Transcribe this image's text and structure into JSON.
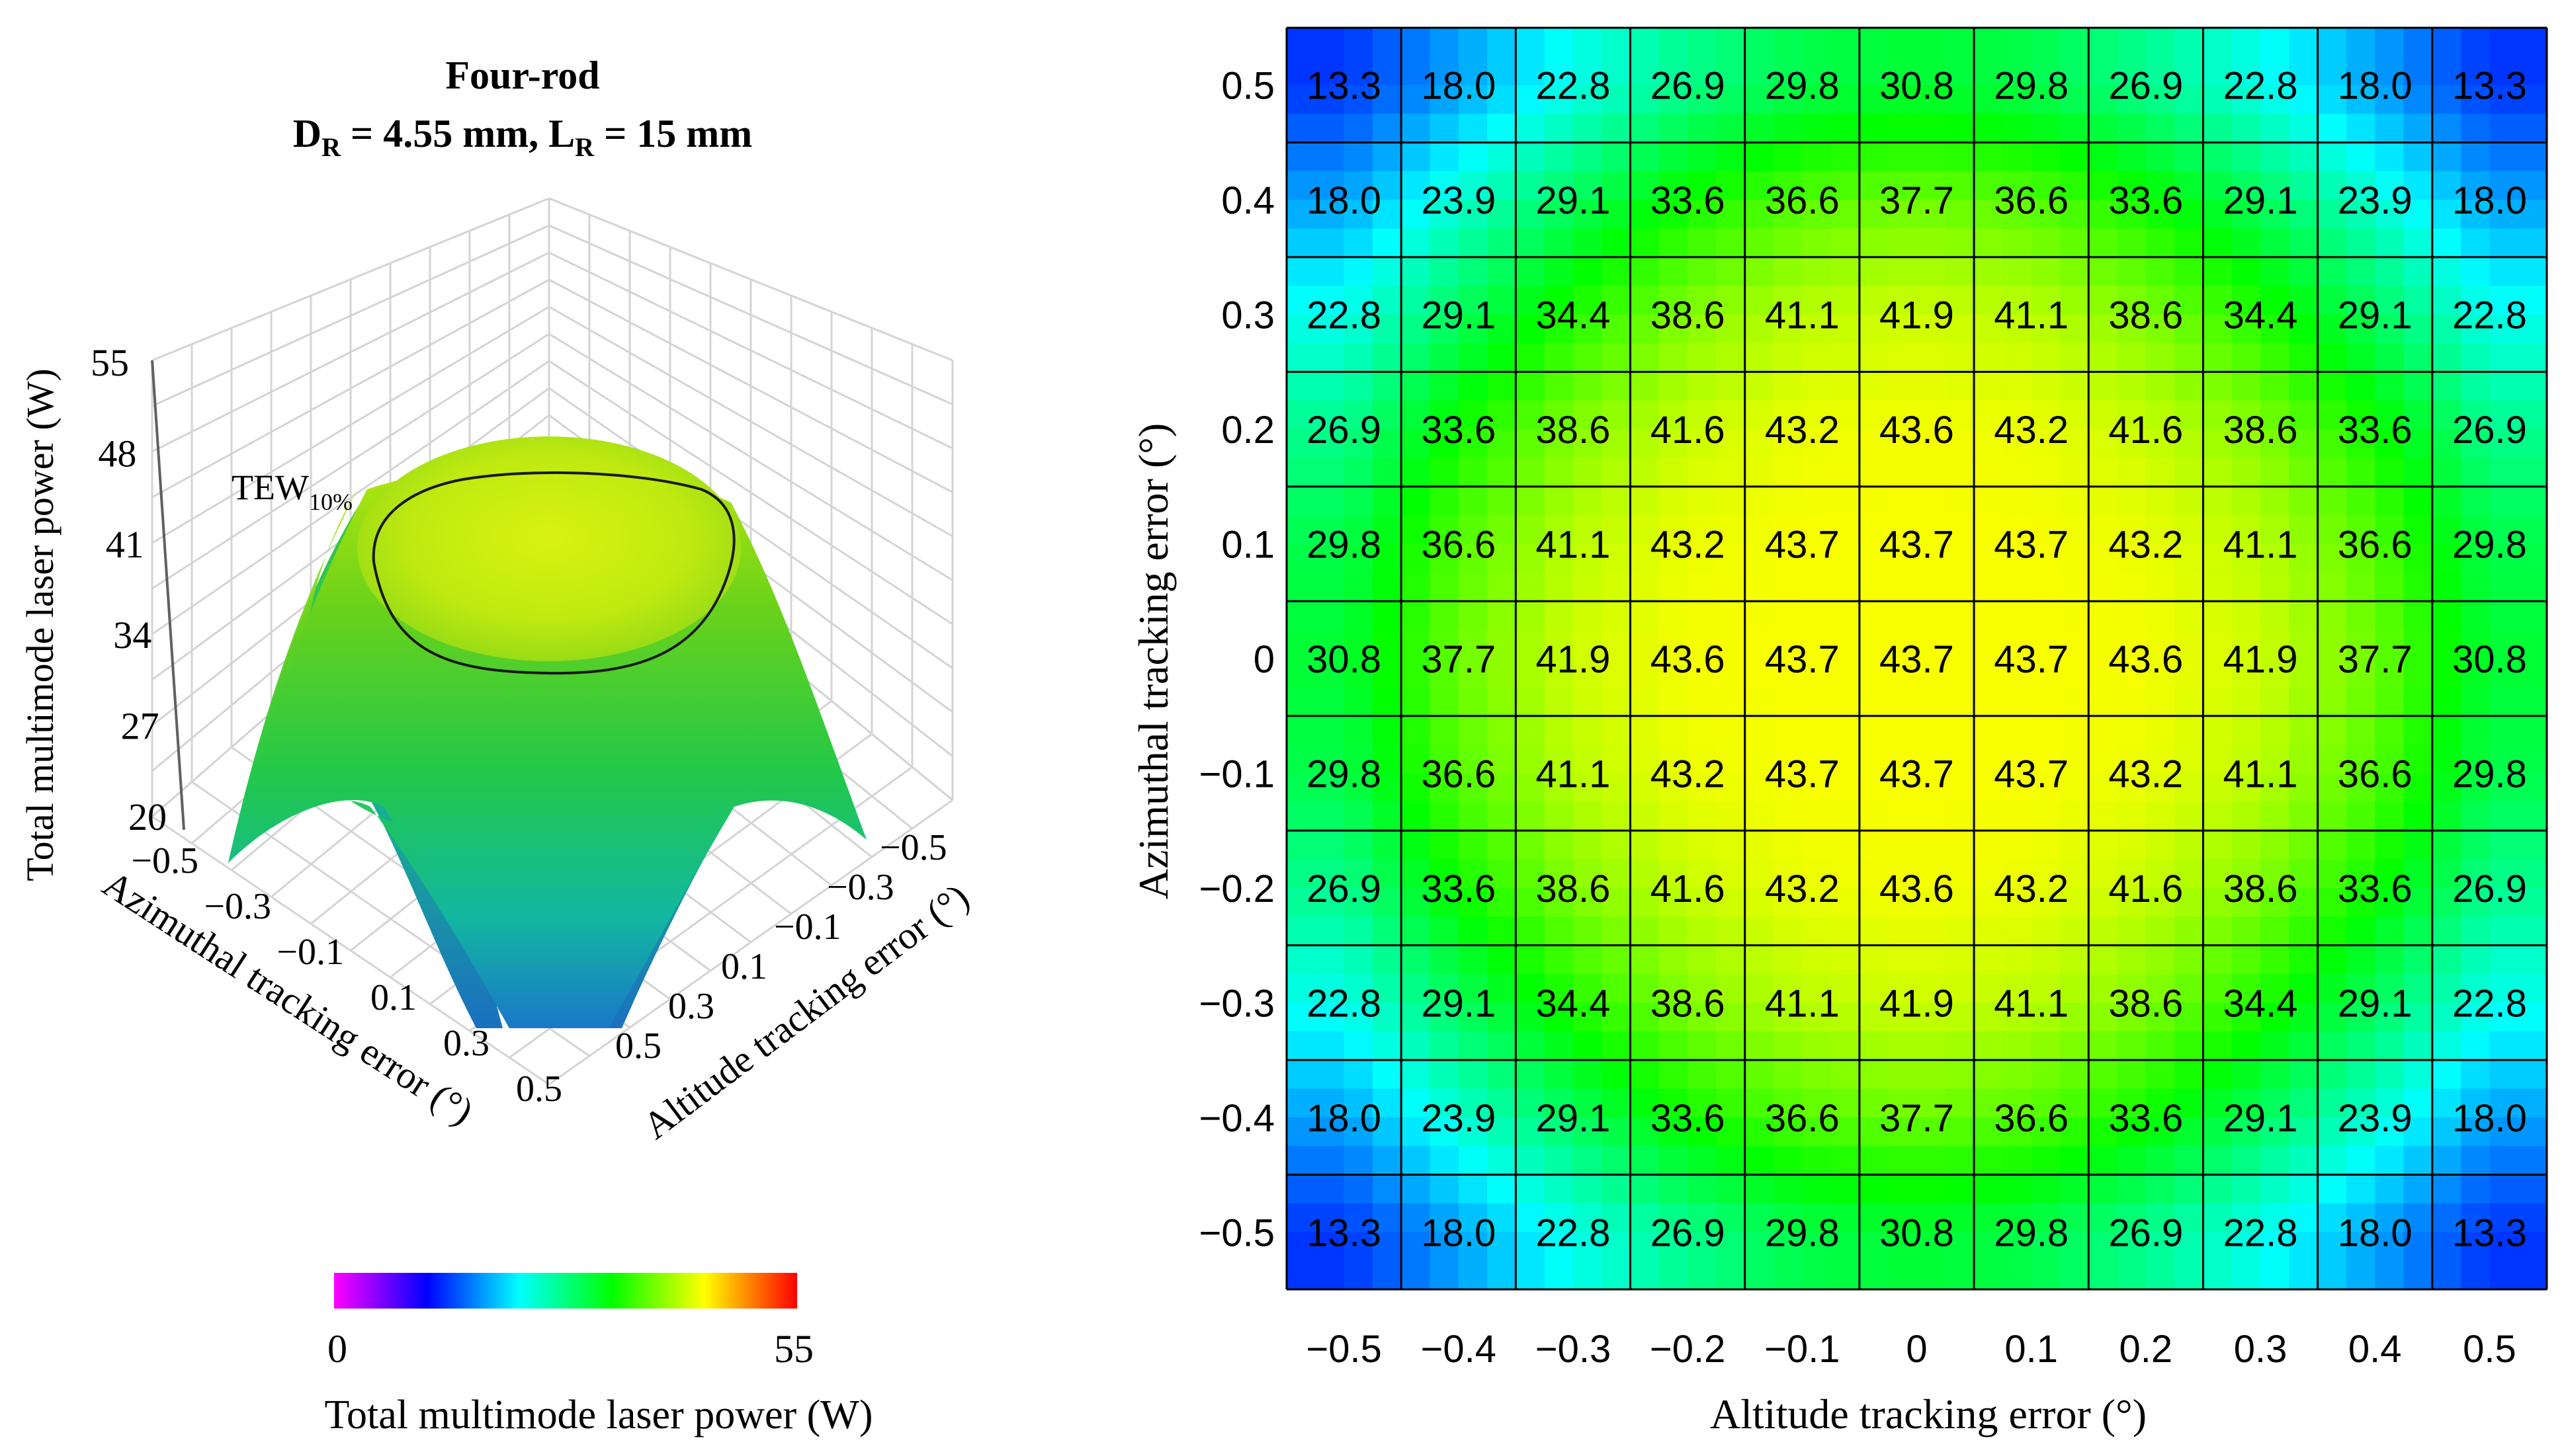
{
  "chart_data": [
    {
      "type": "surface",
      "title": "Four-rod",
      "subtitle_parts": [
        "D",
        "R",
        " = 4.55 mm,  L",
        "R",
        " = 15 mm"
      ],
      "zlabel": "Total multimode laser power (W)",
      "xlabel": "Altitude tracking error (°)",
      "ylabel": "Azimuthal tracking error (°)",
      "z_ticks": [
        "55",
        "48",
        "41",
        "34",
        "27",
        "20"
      ],
      "z_range": [
        20,
        55
      ],
      "x_ticks": [
        "−0.5",
        "−0.3",
        "−0.1",
        "0.1",
        "0.3",
        "0.5"
      ],
      "y_ticks": [
        "−0.5",
        "−0.3",
        "−0.1",
        "0.1",
        "0.3",
        "0.5"
      ],
      "annotation": {
        "main": "TEW",
        "sub": "10%"
      },
      "colorbar": {
        "min_label": "0",
        "max_label": "55",
        "range": [
          0,
          55
        ],
        "label": "Total multimode laser power (W)",
        "colors": [
          "#ff00ff",
          "#0000ff",
          "#00ffff",
          "#00ff00",
          "#ffff00",
          "#ff0000"
        ]
      }
    },
    {
      "type": "heatmap",
      "xlabel": "Altitude tracking error (°)",
      "ylabel": "Azimuthal tracking error (°)",
      "x_ticks": [
        "−0.5",
        "−0.4",
        "−0.3",
        "−0.2",
        "−0.1",
        "0",
        "0.1",
        "0.2",
        "0.3",
        "0.4",
        "0.5"
      ],
      "y_ticks": [
        "0.5",
        "0.4",
        "0.3",
        "0.2",
        "0.1",
        "0",
        "−0.1",
        "−0.2",
        "−0.3",
        "−0.4",
        "−0.5"
      ],
      "values": [
        [
          "13.3",
          "18.0",
          "22.8",
          "26.9",
          "29.8",
          "30.8",
          "29.8",
          "26.9",
          "22.8",
          "18.0",
          "13.3"
        ],
        [
          "18.0",
          "23.9",
          "29.1",
          "33.6",
          "36.6",
          "37.7",
          "36.6",
          "33.6",
          "29.1",
          "23.9",
          "18.0"
        ],
        [
          "22.8",
          "29.1",
          "34.4",
          "38.6",
          "41.1",
          "41.9",
          "41.1",
          "38.6",
          "34.4",
          "29.1",
          "22.8"
        ],
        [
          "26.9",
          "33.6",
          "38.6",
          "41.6",
          "43.2",
          "43.6",
          "43.2",
          "41.6",
          "38.6",
          "33.6",
          "26.9"
        ],
        [
          "29.8",
          "36.6",
          "41.1",
          "43.2",
          "43.7",
          "43.7",
          "43.7",
          "43.2",
          "41.1",
          "36.6",
          "29.8"
        ],
        [
          "30.8",
          "37.7",
          "41.9",
          "43.6",
          "43.7",
          "43.7",
          "43.7",
          "43.6",
          "41.9",
          "37.7",
          "30.8"
        ],
        [
          "29.8",
          "36.6",
          "41.1",
          "43.2",
          "43.7",
          "43.7",
          "43.7",
          "43.2",
          "41.1",
          "36.6",
          "29.8"
        ],
        [
          "26.9",
          "33.6",
          "38.6",
          "41.6",
          "43.2",
          "43.6",
          "43.2",
          "41.6",
          "38.6",
          "33.6",
          "26.9"
        ],
        [
          "22.8",
          "29.1",
          "34.4",
          "38.6",
          "41.1",
          "41.9",
          "41.1",
          "38.6",
          "34.4",
          "29.1",
          "22.8"
        ],
        [
          "18.0",
          "23.9",
          "29.1",
          "33.6",
          "36.6",
          "37.7",
          "36.6",
          "33.6",
          "29.1",
          "23.9",
          "18.0"
        ],
        [
          "13.3",
          "18.0",
          "22.8",
          "26.9",
          "29.8",
          "30.8",
          "29.8",
          "26.9",
          "22.8",
          "18.0",
          "13.3"
        ]
      ],
      "color_range": [
        0,
        55
      ]
    }
  ]
}
